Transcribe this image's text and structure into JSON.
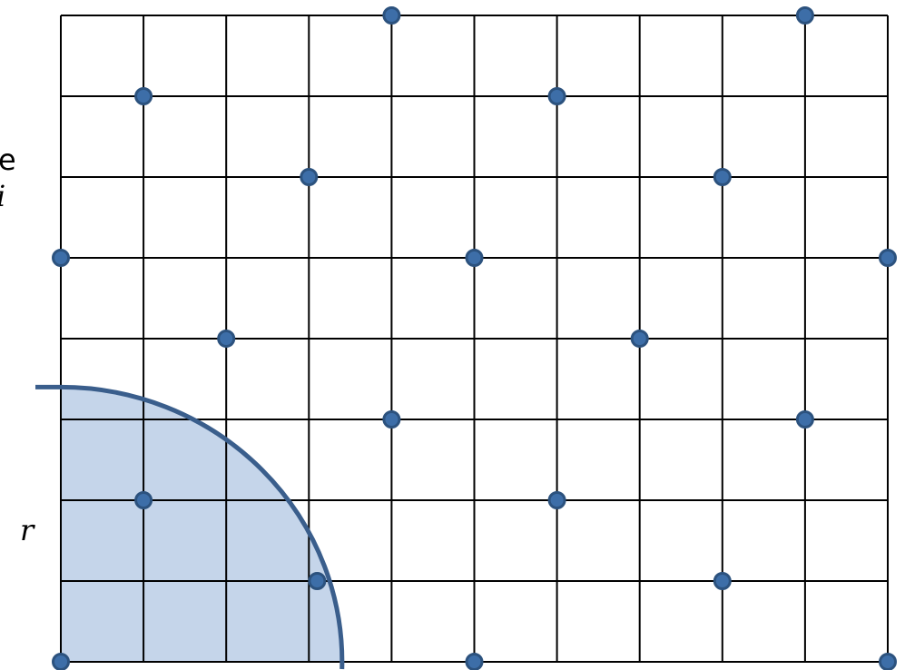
{
  "diagram": {
    "grid": {
      "columns": 10,
      "rows": 8,
      "line_color": "#000000"
    },
    "region": {
      "label": "r",
      "fill": "#c5d5ea",
      "stroke": "#3a5e8c"
    },
    "clipped_text": {
      "top": "e",
      "bottom": "i"
    },
    "point_color": "#3d6ea8",
    "point_stroke": "#2c527e",
    "points": [
      [
        4,
        8
      ],
      [
        9,
        8
      ],
      [
        1,
        7
      ],
      [
        6,
        7
      ],
      [
        3,
        6
      ],
      [
        8,
        6
      ],
      [
        0,
        5
      ],
      [
        5,
        5
      ],
      [
        10,
        5
      ],
      [
        2,
        4
      ],
      [
        7,
        4
      ],
      [
        4,
        3
      ],
      [
        9,
        3
      ],
      [
        1,
        2
      ],
      [
        6,
        2
      ],
      [
        3.1,
        1
      ],
      [
        8,
        1
      ],
      [
        0,
        0
      ],
      [
        5,
        0
      ],
      [
        10,
        0
      ]
    ],
    "radius_cells": 3.4
  }
}
